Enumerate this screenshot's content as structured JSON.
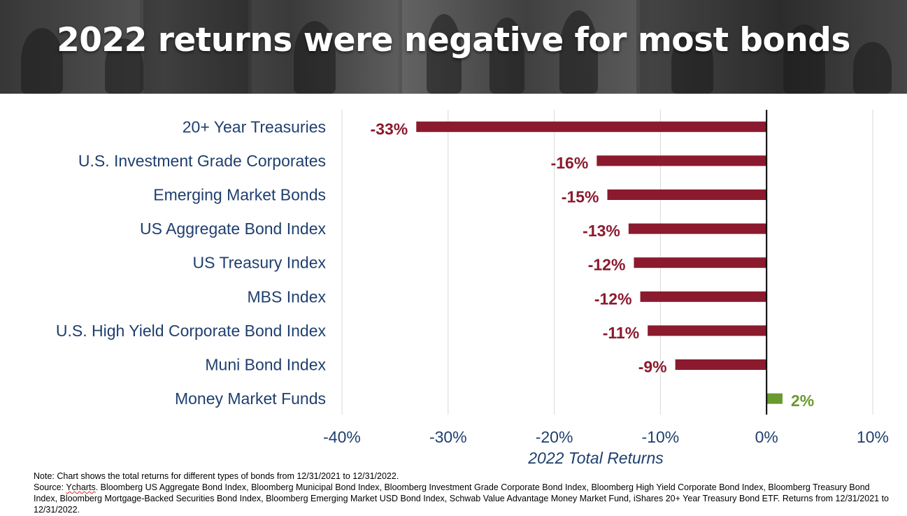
{
  "slide": {
    "title": "2022 returns were negative for most bonds",
    "note": "Note: Chart shows the total returns for different types of bonds from 12/31/2021 to 12/31/2022.",
    "source_prefix": "Source: ",
    "source_link": "Ycharts",
    "source_rest": ". Bloomberg US Aggregate Bond Index, Bloomberg Municipal Bond Index, Bloomberg Investment Grade Corporate Bond Index, Bloomberg High Yield Corporate Bond Index, Bloomberg Treasury Bond Index, Bloomberg Mortgage-Backed Securities Bond Index, Bloomberg Emerging Market USD Bond Index, Schwab Value Advantage Money Market Fund, iShares 20+ Year Treasury Bond ETF. Returns from 12/31/2021 to 12/31/2022."
  },
  "colors": {
    "negative": "#8b1a2e",
    "positive": "#6a9a2e",
    "text": "#1f3f6e",
    "grid": "#d9d9d9"
  },
  "chart_data": {
    "type": "bar",
    "orientation": "horizontal",
    "categories": [
      "20+ Year Treasuries",
      "U.S. Investment Grade Corporates",
      "Emerging Market Bonds",
      "US Aggregate Bond Index",
      "US Treasury Index",
      "MBS Index",
      "U.S. High Yield Corporate Bond Index",
      "Muni Bond Index",
      "Money Market Funds"
    ],
    "values": [
      -33,
      -16,
      -15,
      -13,
      -12.5,
      -11.9,
      -11.2,
      -8.6,
      1.5
    ],
    "data_labels": [
      "-33%",
      "-16%",
      "-15%",
      "-13%",
      "-12%",
      "-12%",
      "-11%",
      "-9%",
      "2%"
    ],
    "xlabel": "2022 Total Returns",
    "xlim": [
      -40,
      10
    ],
    "xticks": [
      -40,
      -30,
      -20,
      -10,
      0,
      10
    ],
    "xtick_labels": [
      "-40%",
      "-30%",
      "-20%",
      "-10%",
      "0%",
      "10%"
    ],
    "grid": true
  }
}
